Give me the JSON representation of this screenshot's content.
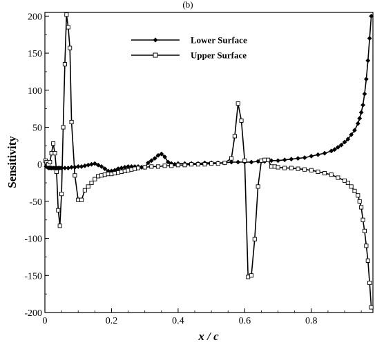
{
  "chart_data": {
    "type": "line",
    "top_label": "(b)",
    "xlabel": "x / c",
    "ylabel": "Sensitivity",
    "xlim": [
      0,
      0.985
    ],
    "ylim": [
      -200,
      205
    ],
    "x_ticks": [
      0,
      0.2,
      0.4,
      0.6,
      0.8
    ],
    "x_tick_labels": [
      "0",
      "0.2",
      "0.4",
      "0.6",
      "0.8"
    ],
    "y_ticks": [
      -200,
      -150,
      -100,
      -50,
      0,
      50,
      100,
      150,
      200
    ],
    "y_tick_labels": [
      "-200",
      "-150",
      "-100",
      "-50",
      "0",
      "50",
      "100",
      "150",
      "200"
    ],
    "grid": false,
    "legend_position": "top-center",
    "series": [
      {
        "name": "Lower Surface",
        "marker": "filled-diamond",
        "color": "#000000",
        "x": [
          0.004,
          0.008,
          0.012,
          0.016,
          0.02,
          0.025,
          0.03,
          0.035,
          0.04,
          0.045,
          0.05,
          0.06,
          0.07,
          0.08,
          0.09,
          0.1,
          0.11,
          0.12,
          0.13,
          0.14,
          0.15,
          0.16,
          0.17,
          0.18,
          0.19,
          0.2,
          0.21,
          0.22,
          0.23,
          0.24,
          0.25,
          0.26,
          0.27,
          0.28,
          0.29,
          0.3,
          0.31,
          0.32,
          0.33,
          0.34,
          0.35,
          0.36,
          0.37,
          0.38,
          0.39,
          0.4,
          0.42,
          0.44,
          0.46,
          0.48,
          0.5,
          0.52,
          0.54,
          0.56,
          0.58,
          0.6,
          0.62,
          0.64,
          0.66,
          0.68,
          0.7,
          0.72,
          0.74,
          0.76,
          0.78,
          0.8,
          0.82,
          0.84,
          0.86,
          0.87,
          0.88,
          0.89,
          0.9,
          0.91,
          0.92,
          0.93,
          0.94,
          0.945,
          0.95,
          0.955,
          0.96,
          0.965,
          0.97,
          0.975,
          0.98
        ],
        "y": [
          -3,
          -4,
          -5,
          -5,
          -5,
          -5,
          -5,
          -5,
          -5,
          -5,
          -5,
          -5,
          -5,
          -4,
          -4,
          -3,
          -3,
          -2,
          -1,
          0,
          1,
          -1,
          -3,
          -6,
          -9,
          -9,
          -8,
          -6,
          -5,
          -4,
          -3,
          -3,
          -3,
          -3,
          -4,
          -4,
          2,
          5,
          8,
          12,
          14,
          10,
          3,
          1,
          0,
          1,
          1,
          1,
          1,
          2,
          2,
          2,
          2,
          3,
          3,
          3,
          3,
          4,
          4,
          5,
          5,
          6,
          7,
          8,
          9,
          11,
          13,
          15,
          18,
          20,
          23,
          26,
          30,
          34,
          40,
          46,
          55,
          62,
          70,
          80,
          95,
          115,
          140,
          170,
          200
        ]
      },
      {
        "name": "Upper Surface",
        "marker": "open-square",
        "color": "#000000",
        "x": [
          0.002,
          0.005,
          0.01,
          0.015,
          0.02,
          0.025,
          0.03,
          0.035,
          0.04,
          0.045,
          0.05,
          0.055,
          0.06,
          0.065,
          0.07,
          0.075,
          0.08,
          0.09,
          0.1,
          0.11,
          0.12,
          0.13,
          0.14,
          0.15,
          0.16,
          0.17,
          0.18,
          0.19,
          0.2,
          0.21,
          0.22,
          0.23,
          0.24,
          0.25,
          0.26,
          0.27,
          0.28,
          0.3,
          0.32,
          0.34,
          0.36,
          0.38,
          0.4,
          0.42,
          0.44,
          0.46,
          0.48,
          0.5,
          0.52,
          0.54,
          0.56,
          0.57,
          0.58,
          0.59,
          0.6,
          0.61,
          0.62,
          0.63,
          0.64,
          0.65,
          0.66,
          0.67,
          0.68,
          0.69,
          0.7,
          0.72,
          0.74,
          0.76,
          0.78,
          0.8,
          0.82,
          0.84,
          0.86,
          0.88,
          0.9,
          0.91,
          0.92,
          0.93,
          0.94,
          0.945,
          0.95,
          0.955,
          0.96,
          0.965,
          0.97,
          0.975,
          0.98
        ],
        "y": [
          5,
          3,
          0,
          3,
          15,
          28,
          15,
          -10,
          -62,
          -83,
          -40,
          50,
          135,
          202,
          185,
          157,
          57,
          -15,
          -48,
          -48,
          -35,
          -30,
          -25,
          -20,
          -16,
          -15,
          -14,
          -13,
          -13,
          -12,
          -11,
          -10,
          -9,
          -8,
          -7,
          -6,
          -5,
          -4,
          -3,
          -3,
          -2,
          -2,
          -1,
          -1,
          0,
          0,
          0,
          1,
          1,
          2,
          8,
          38,
          82,
          59,
          5,
          -152,
          -150,
          -101,
          -30,
          5,
          6,
          6,
          -3,
          -3,
          -4,
          -5,
          -5,
          -6,
          -7,
          -8,
          -10,
          -12,
          -14,
          -18,
          -22,
          -25,
          -30,
          -36,
          -42,
          -50,
          -58,
          -75,
          -90,
          -110,
          -130,
          -160,
          -193
        ]
      }
    ]
  }
}
